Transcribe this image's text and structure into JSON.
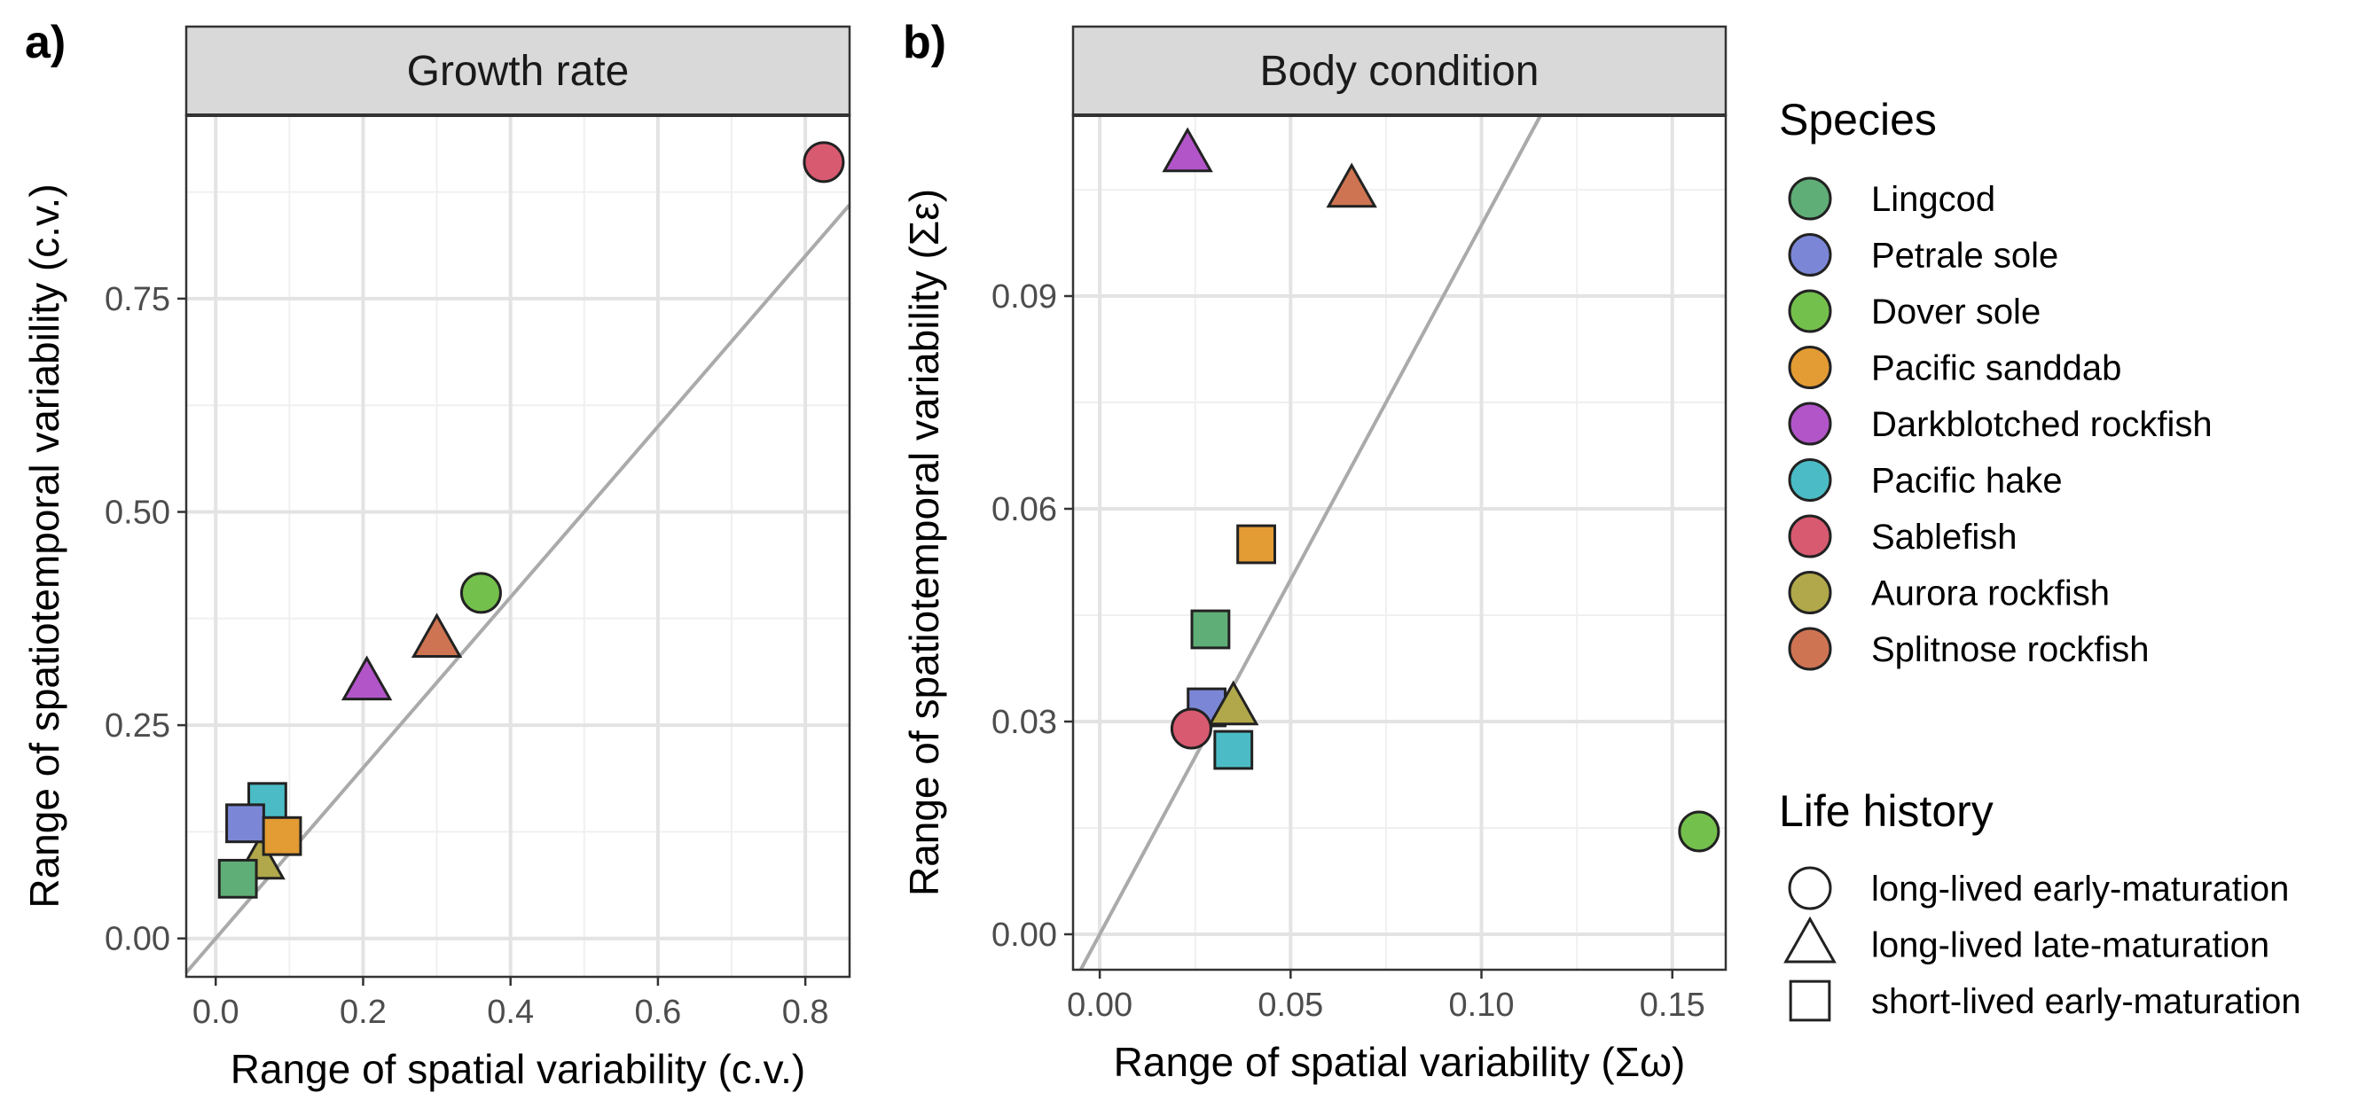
{
  "figure": {
    "legend": {
      "species_title": "Species",
      "life_history_title": "Life history",
      "species": [
        {
          "name": "Lingcod",
          "color": "#5fae77"
        },
        {
          "name": "Petrale sole",
          "color": "#7b87d6"
        },
        {
          "name": "Dover sole",
          "color": "#74c04c"
        },
        {
          "name": "Pacific sanddab",
          "color": "#e39b34"
        },
        {
          "name": "Darkblotched rockfish",
          "color": "#b255c9"
        },
        {
          "name": "Pacific hake",
          "color": "#4bbcc6"
        },
        {
          "name": "Sablefish",
          "color": "#d85a70"
        },
        {
          "name": "Aurora rockfish",
          "color": "#b0a84a"
        },
        {
          "name": "Splitnose rockfish",
          "color": "#cf7452"
        }
      ],
      "life_history": [
        {
          "name": "long-lived early-maturation",
          "shape": "circle"
        },
        {
          "name": "long-lived late-maturation",
          "shape": "triangle"
        },
        {
          "name": "short-lived early-maturation",
          "shape": "square"
        }
      ]
    }
  },
  "chart_data": [
    {
      "type": "scatter",
      "panel_label": "a)",
      "title": "Growth rate",
      "xlabel": "Range of spatial variability (c.v.)",
      "ylabel": "Range of spatiotemporal variability (c.v.)",
      "xlim": [
        -0.04,
        0.86
      ],
      "ylim": [
        -0.045,
        0.965
      ],
      "xticks": [
        0.0,
        0.2,
        0.4,
        0.6,
        0.8
      ],
      "xtick_labels": [
        "0.0",
        "0.2",
        "0.4",
        "0.6",
        "0.8"
      ],
      "yticks": [
        0.0,
        0.25,
        0.5,
        0.75
      ],
      "ytick_labels": [
        "0.00",
        "0.25",
        "0.50",
        "0.75"
      ],
      "grid": true,
      "reference_line": {
        "slope": 1,
        "intercept": 0
      },
      "points": [
        {
          "species": "Sablefish",
          "shape": "circle",
          "x": 0.825,
          "y": 0.91
        },
        {
          "species": "Dover sole",
          "shape": "circle",
          "x": 0.36,
          "y": 0.405
        },
        {
          "species": "Splitnose rockfish",
          "shape": "triangle",
          "x": 0.3,
          "y": 0.35
        },
        {
          "species": "Darkblotched rockfish",
          "shape": "triangle",
          "x": 0.205,
          "y": 0.3
        },
        {
          "species": "Aurora rockfish",
          "shape": "triangle",
          "x": 0.06,
          "y": 0.09
        },
        {
          "species": "Pacific hake",
          "shape": "square",
          "x": 0.07,
          "y": 0.16
        },
        {
          "species": "Petrale sole",
          "shape": "square",
          "x": 0.04,
          "y": 0.135
        },
        {
          "species": "Pacific sanddab",
          "shape": "square",
          "x": 0.09,
          "y": 0.12
        },
        {
          "species": "Lingcod",
          "shape": "square",
          "x": 0.03,
          "y": 0.07
        }
      ]
    },
    {
      "type": "scatter",
      "panel_label": "b)",
      "title": "Body condition",
      "xlabel": "Range of spatial variability (Σω)",
      "ylabel": "Range of spatiotemporal variability (Σε)",
      "xlim": [
        -0.007,
        0.164
      ],
      "ylim": [
        -0.005,
        0.1155
      ],
      "xticks": [
        0.0,
        0.05,
        0.1,
        0.15
      ],
      "xtick_labels": [
        "0.00",
        "0.05",
        "0.10",
        "0.15"
      ],
      "yticks": [
        0.0,
        0.03,
        0.06,
        0.09
      ],
      "ytick_labels": [
        "0.00",
        "0.03",
        "0.06",
        "0.09"
      ],
      "grid": true,
      "reference_line": {
        "slope": 1,
        "intercept": 0
      },
      "points": [
        {
          "species": "Darkblotched rockfish",
          "shape": "triangle",
          "x": 0.023,
          "y": 0.11
        },
        {
          "species": "Splitnose rockfish",
          "shape": "triangle",
          "x": 0.066,
          "y": 0.105
        },
        {
          "species": "Pacific sanddab",
          "shape": "square",
          "x": 0.041,
          "y": 0.055
        },
        {
          "species": "Lingcod",
          "shape": "square",
          "x": 0.029,
          "y": 0.043
        },
        {
          "species": "Petrale sole",
          "shape": "square",
          "x": 0.028,
          "y": 0.032
        },
        {
          "species": "Aurora rockfish",
          "shape": "triangle",
          "x": 0.035,
          "y": 0.032
        },
        {
          "species": "Pacific hake",
          "shape": "square",
          "x": 0.035,
          "y": 0.026
        },
        {
          "species": "Sablefish",
          "shape": "circle",
          "x": 0.024,
          "y": 0.029
        },
        {
          "species": "Dover sole",
          "shape": "circle",
          "x": 0.157,
          "y": 0.0145
        }
      ]
    }
  ]
}
